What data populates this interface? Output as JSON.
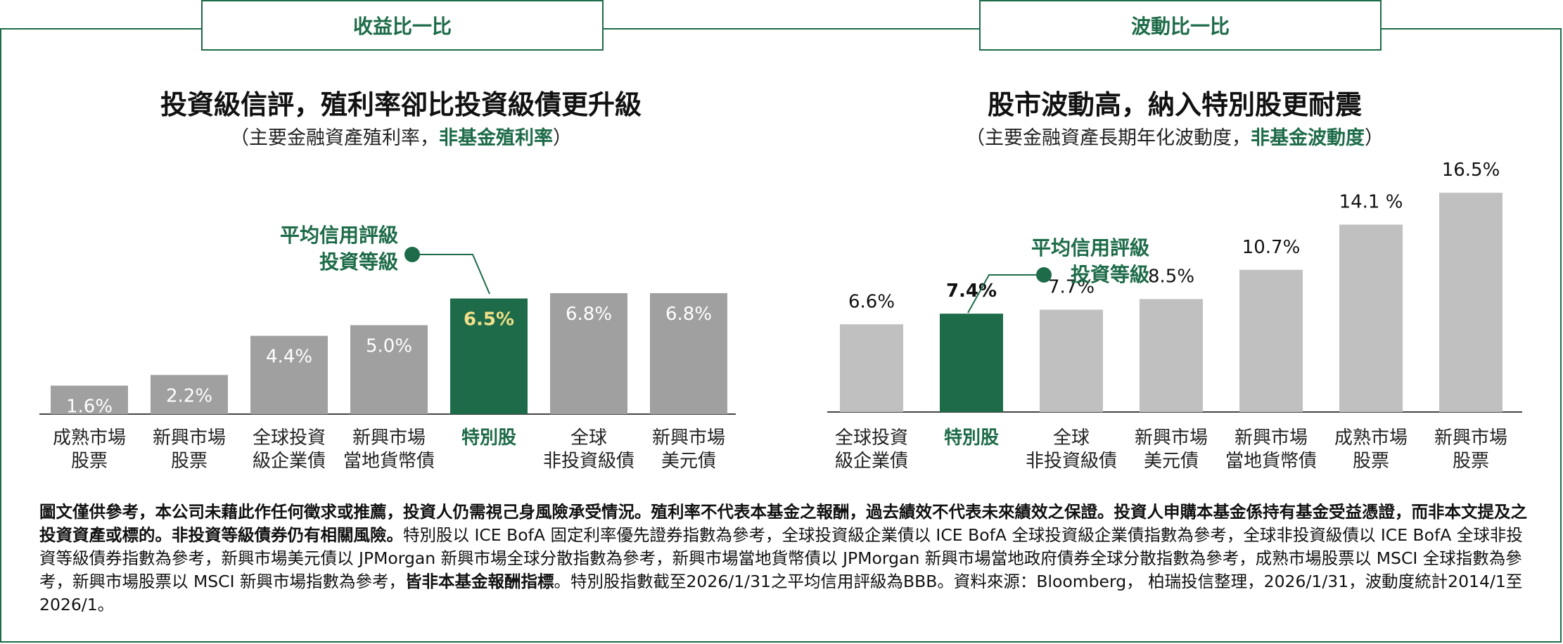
{
  "tabs": {
    "left": "收益比一比",
    "right": "波動比一比"
  },
  "left_panel": {
    "title": "投資級信評，殖利率卻比投資級債更升級",
    "subtitle_prefix": "（主要金融資產殖利率，",
    "subtitle_highlight": "非基金殖利率",
    "subtitle_suffix": "）"
  },
  "right_panel": {
    "title": "股市波動高，納入特別股更耐震",
    "subtitle_prefix": "（主要金融資產長期年化波動度，",
    "subtitle_highlight": "非基金波動度",
    "subtitle_suffix": "）"
  },
  "chart_data": [
    {
      "type": "bar",
      "title": "投資級信評，殖利率卻比投資級債更升級",
      "categories": [
        [
          "成熟市場",
          "股票"
        ],
        [
          "新興市場",
          "股票"
        ],
        [
          "全球投資",
          "級企業債"
        ],
        [
          "新興市場",
          "當地貨幣債"
        ],
        [
          "特別股"
        ],
        [
          "全球",
          "非投資級債"
        ],
        [
          "新興市場",
          "美元債"
        ]
      ],
      "values": [
        1.6,
        2.2,
        4.4,
        5.0,
        6.5,
        6.8,
        6.8
      ],
      "data_labels": [
        "1.6%",
        "2.2%",
        "4.4%",
        "5.0%",
        "6.5%",
        "6.8%",
        "6.8%"
      ],
      "highlight_index": 4,
      "label_position": "inside",
      "annotation": [
        "平均信用評級",
        "投資等級"
      ],
      "unit": "%"
    },
    {
      "type": "bar",
      "title": "股市波動高，納入特別股更耐震",
      "categories": [
        [
          "全球投資",
          "級企業債"
        ],
        [
          "特別股"
        ],
        [
          "全球",
          "非投資級債"
        ],
        [
          "新興市場",
          "美元債"
        ],
        [
          "新興市場",
          "當地貨幣債"
        ],
        [
          "成熟市場",
          "股票"
        ],
        [
          "新興市場",
          "股票"
        ]
      ],
      "values": [
        6.6,
        7.4,
        7.7,
        8.5,
        10.7,
        14.1,
        16.5
      ],
      "data_labels": [
        "6.6%",
        "7.4%",
        "7.7%",
        "8.5%",
        "10.7%",
        "14.1 %",
        "16.5%"
      ],
      "highlight_index": 1,
      "label_position": "above",
      "annotation": [
        "平均信用評級",
        "投資等級"
      ],
      "unit": "%"
    }
  ],
  "colors": {
    "accent": "#1d6b48",
    "bar_left": "#a0a0a0",
    "bar_right": "#c0c0c0",
    "highlight_label": "#f2e08a"
  },
  "disclaimer": {
    "p1": "圖文僅供參考，本公司未藉此作任何徵求或推薦，投資人仍需視己身風險承受情況。殖利率不代表本基金之報酬，過去績效不代表未來績效之保證。投資人申購本基金係持有基金受益憑證，而非本文提及之投資資產或標的。非投資等級債券仍有相關風險。",
    "p2": "特別股以 ICE BofA 固定利率優先證券指數為參考，全球投資級企業債以 ICE BofA 全球投資級企業債指數為參考，全球非投資級債以 ICE BofA 全球非投資等級債券指數為參考，新興市場美元債以 JPMorgan 新興市場全球分散指數為參考，新興市場當地貨幣債以 JPMorgan 新興市場當地政府債券全球分散指數為參考，成熟市場股票以 MSCI 全球指數為參考，新興市場股票以 MSCI 新興市場指數為參考，",
    "p3": "皆非本基金報酬指標",
    "p4": "。特別股指數截至2026/1/31之平均信用評級為BBB。資料來源：Bloomberg， 柏瑞投信整理，2026/1/31，波動度統計2014/1至2026/1。"
  }
}
